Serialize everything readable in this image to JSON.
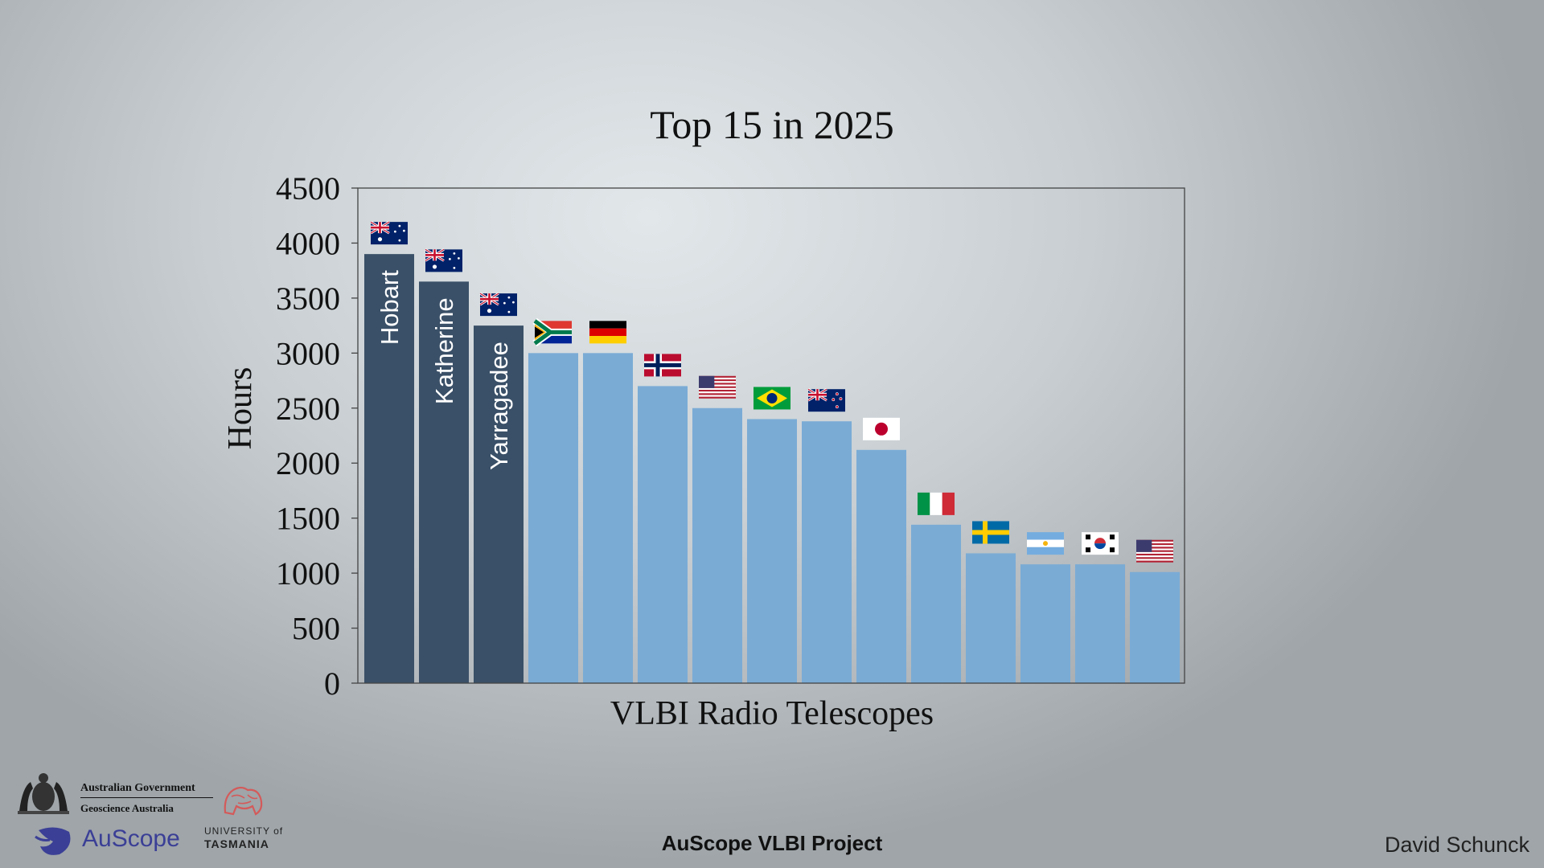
{
  "chart_data": {
    "type": "bar",
    "title": "Top 15 in 2025",
    "xlabel": "VLBI Radio Telescopes",
    "ylabel": "Hours",
    "ylim": [
      0,
      4500
    ],
    "yticks": [
      0,
      500,
      1000,
      1500,
      2000,
      2500,
      3000,
      3500,
      4000,
      4500
    ],
    "bars": [
      {
        "label": "Hobart",
        "value": 3900,
        "flag": "australia",
        "highlight": true
      },
      {
        "label": "Katherine",
        "value": 3650,
        "flag": "australia",
        "highlight": true
      },
      {
        "label": "Yarragadee",
        "value": 3250,
        "flag": "australia",
        "highlight": true
      },
      {
        "label": "",
        "value": 3000,
        "flag": "south-africa",
        "highlight": false
      },
      {
        "label": "",
        "value": 3000,
        "flag": "germany",
        "highlight": false
      },
      {
        "label": "",
        "value": 2700,
        "flag": "norway",
        "highlight": false
      },
      {
        "label": "",
        "value": 2500,
        "flag": "usa",
        "highlight": false
      },
      {
        "label": "",
        "value": 2400,
        "flag": "brazil",
        "highlight": false
      },
      {
        "label": "",
        "value": 2380,
        "flag": "new-zealand",
        "highlight": false
      },
      {
        "label": "",
        "value": 2120,
        "flag": "japan",
        "highlight": false
      },
      {
        "label": "",
        "value": 1440,
        "flag": "italy",
        "highlight": false
      },
      {
        "label": "",
        "value": 1180,
        "flag": "sweden",
        "highlight": false
      },
      {
        "label": "",
        "value": 1080,
        "flag": "argentina",
        "highlight": false
      },
      {
        "label": "",
        "value": 1080,
        "flag": "south-korea",
        "highlight": false
      },
      {
        "label": "",
        "value": 1010,
        "flag": "usa",
        "highlight": false
      }
    ],
    "colors": {
      "highlight": "#3a5068",
      "normal": "#7aabd5"
    }
  },
  "footer": {
    "project": "AuScope VLBI Project",
    "author": "David Schunck"
  },
  "logos": {
    "gov_line1": "Australian Government",
    "gov_line2": "Geoscience Australia",
    "auscope": "AuScope",
    "utas_line1": "UNIVERSITY of",
    "utas_line2": "TASMANIA"
  }
}
